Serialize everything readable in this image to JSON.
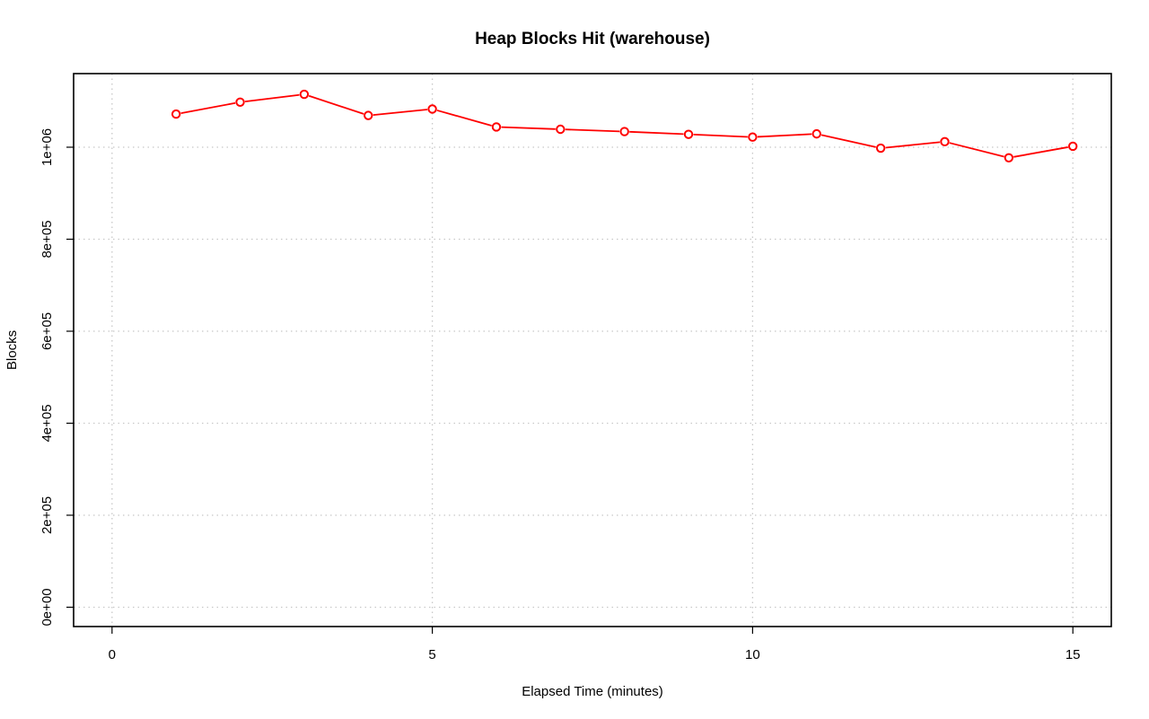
{
  "chart_data": {
    "type": "line",
    "title": "Heap Blocks Hit (warehouse)",
    "xlabel": "Elapsed Time (minutes)",
    "ylabel": "Blocks",
    "xlim": [
      -0.6,
      15.6
    ],
    "ylim": [
      -42000,
      1160000
    ],
    "x_ticks": [
      0,
      5,
      10,
      15
    ],
    "x_tick_labels": [
      "0",
      "5",
      "10",
      "15"
    ],
    "y_ticks": [
      0,
      200000,
      400000,
      600000,
      800000,
      1000000
    ],
    "y_tick_labels": [
      "0e+00",
      "2e+05",
      "4e+05",
      "6e+05",
      "8e+05",
      "1e+06"
    ],
    "grid": true,
    "series": [
      {
        "color": "#ff0000",
        "x": [
          1,
          2,
          3,
          4,
          5,
          6,
          7,
          8,
          9,
          10,
          11,
          12,
          13,
          14,
          15
        ],
        "values": [
          1072000,
          1098000,
          1115000,
          1069000,
          1083000,
          1044000,
          1039000,
          1034000,
          1028000,
          1022000,
          1029000,
          998000,
          1012000,
          977000,
          1002000
        ]
      }
    ]
  }
}
